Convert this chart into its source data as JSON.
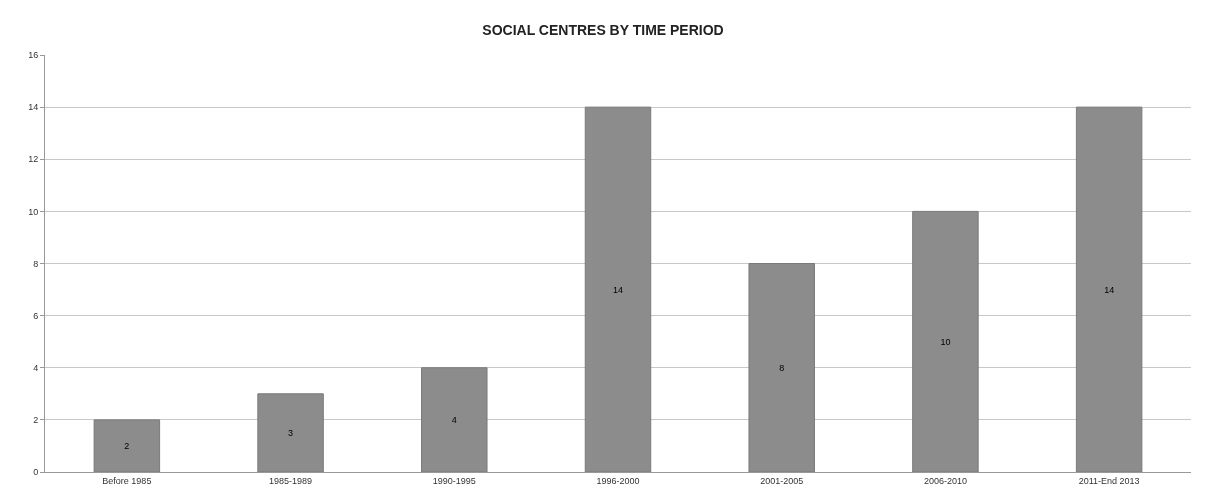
{
  "chart_data": {
    "type": "bar",
    "title": "SOCIAL CENTRES BY TIME PERIOD",
    "categories": [
      "Before 1985",
      "1985-1989",
      "1990-1995",
      "1996-2000",
      "2001-2005",
      "2006-2010",
      "2011-End 2013"
    ],
    "values": [
      2,
      3,
      4,
      14,
      8,
      10,
      14
    ],
    "color": "#8c8c8c",
    "ylim": [
      0,
      16
    ],
    "yticks": [
      0,
      2,
      4,
      6,
      8,
      10,
      12,
      14,
      16
    ],
    "grid": "y",
    "data_labels": true,
    "legend": false
  }
}
